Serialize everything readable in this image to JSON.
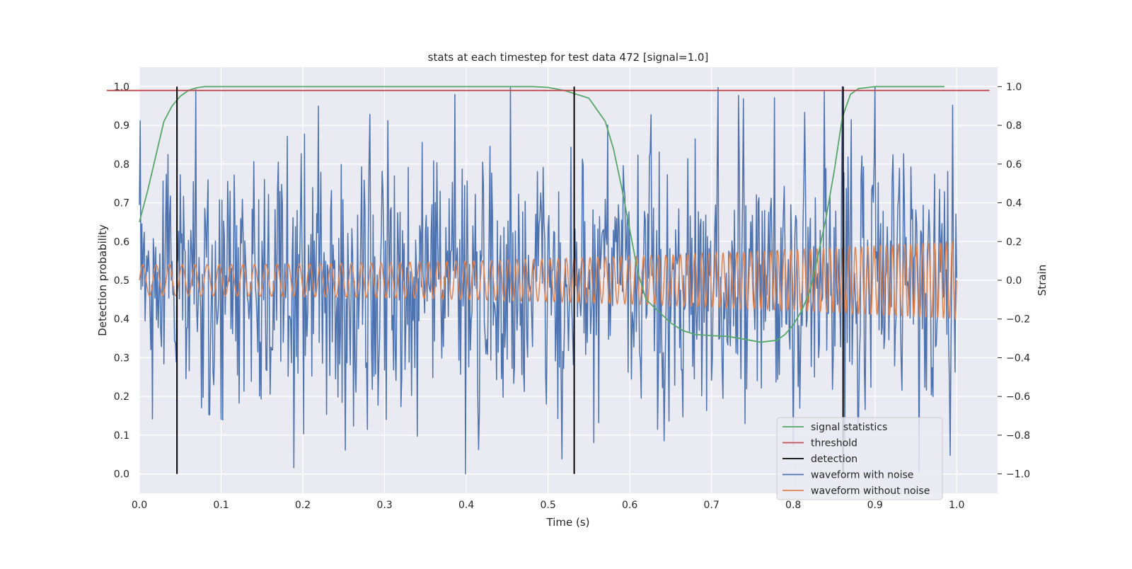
{
  "chart_data": {
    "type": "line",
    "title": "stats at each timestep for test data 472 [signal=1.0]",
    "xlabel": "Time (s)",
    "ylabel_left": "Detection probability",
    "ylabel_right": "Strain",
    "xlim": [
      0.0,
      1.05
    ],
    "ylim_left": [
      -0.05,
      1.05
    ],
    "ylim_right": [
      -1.1,
      1.1
    ],
    "x_ticks": [
      "0.0",
      "0.1",
      "0.2",
      "0.3",
      "0.4",
      "0.5",
      "0.6",
      "0.7",
      "0.8",
      "0.9",
      "1.0"
    ],
    "y_left_ticks": [
      "0.0",
      "0.1",
      "0.2",
      "0.3",
      "0.4",
      "0.5",
      "0.6",
      "0.7",
      "0.8",
      "0.9",
      "1.0"
    ],
    "y_right_ticks": [
      "−1.0",
      "−0.8",
      "−0.6",
      "−0.4",
      "−0.2",
      "0.0",
      "0.2",
      "0.4",
      "0.6",
      "0.8",
      "1.0"
    ],
    "grid": true,
    "legend_position": "lower-right",
    "background_color": "#eaeaf2",
    "series": [
      {
        "name": "signal statistics",
        "axis": "left",
        "color": "#55a868",
        "points": [
          [
            0.0,
            0.65
          ],
          [
            0.01,
            0.73
          ],
          [
            0.02,
            0.82
          ],
          [
            0.03,
            0.91
          ],
          [
            0.04,
            0.95
          ],
          [
            0.05,
            0.975
          ],
          [
            0.06,
            0.99
          ],
          [
            0.07,
            0.997
          ],
          [
            0.08,
            1.0
          ],
          [
            0.1,
            1.0
          ],
          [
            0.2,
            1.0
          ],
          [
            0.3,
            1.0
          ],
          [
            0.4,
            1.0
          ],
          [
            0.48,
            1.0
          ],
          [
            0.5,
            0.998
          ],
          [
            0.52,
            0.99
          ],
          [
            0.535,
            0.98
          ],
          [
            0.55,
            0.97
          ],
          [
            0.56,
            0.94
          ],
          [
            0.57,
            0.91
          ],
          [
            0.58,
            0.84
          ],
          [
            0.59,
            0.74
          ],
          [
            0.6,
            0.63
          ],
          [
            0.61,
            0.52
          ],
          [
            0.62,
            0.45
          ],
          [
            0.635,
            0.42
          ],
          [
            0.65,
            0.39
          ],
          [
            0.665,
            0.37
          ],
          [
            0.68,
            0.36
          ],
          [
            0.7,
            0.357
          ],
          [
            0.72,
            0.355
          ],
          [
            0.74,
            0.348
          ],
          [
            0.76,
            0.34
          ],
          [
            0.78,
            0.345
          ],
          [
            0.79,
            0.36
          ],
          [
            0.8,
            0.385
          ],
          [
            0.81,
            0.42
          ],
          [
            0.82,
            0.47
          ],
          [
            0.83,
            0.56
          ],
          [
            0.84,
            0.66
          ],
          [
            0.85,
            0.78
          ],
          [
            0.86,
            0.92
          ],
          [
            0.87,
            0.98
          ],
          [
            0.88,
            0.995
          ],
          [
            0.9,
            1.0
          ],
          [
            0.95,
            1.0
          ],
          [
            0.985,
            1.0
          ]
        ]
      },
      {
        "name": "threshold",
        "axis": "left",
        "color": "#c44e52",
        "points": [
          [
            -0.04,
            0.99
          ],
          [
            1.04,
            0.99
          ]
        ]
      },
      {
        "name": "detection",
        "axis": "left",
        "color": "#000000",
        "x_positions": [
          0.046,
          0.532,
          0.861
        ],
        "y_range": [
          0.0,
          1.0
        ]
      },
      {
        "name": "waveform with noise",
        "axis": "right",
        "color": "#4c72b0",
        "description_points": 1000,
        "noise_std": 0.35
      },
      {
        "name": "waveform without noise",
        "axis": "right",
        "color": "#dd8452",
        "amplitude_start": 0.08,
        "amplitude_end": 0.2,
        "freq_start": 60,
        "freq_end": 140
      }
    ]
  }
}
